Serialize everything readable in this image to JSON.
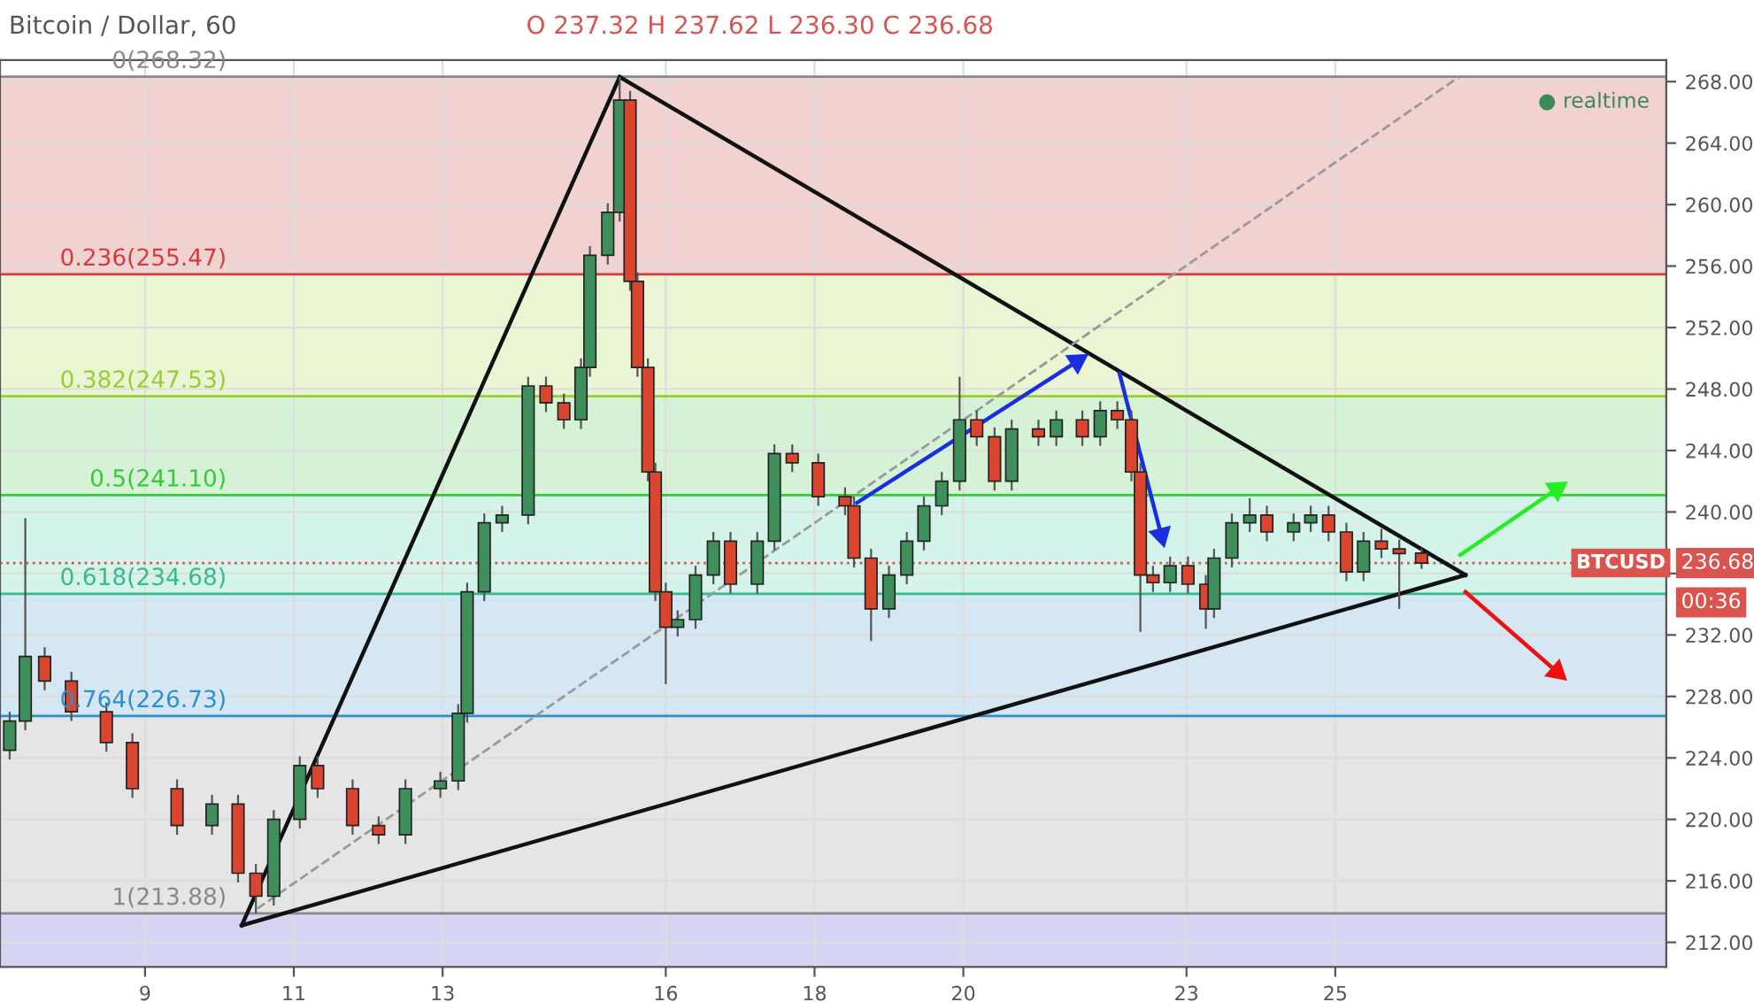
{
  "chart_data": {
    "type": "candlestick",
    "title": "Bitcoin / Dollar, 60",
    "subtitle": "O 237.32 H 237.62 L 236.30 C 236.68",
    "annotations": [
      "● realtime",
      "236.68",
      "00:36"
    ],
    "x": [
      7.18,
      7.39,
      7.65,
      8.01,
      8.48,
      8.83,
      9.43,
      9.9,
      10.25,
      10.49,
      10.73,
      11.08,
      11.32,
      11.79,
      12.14,
      12.5,
      12.97,
      13.21,
      13.33,
      13.56,
      13.8,
      14.15,
      14.39,
      14.63,
      14.86,
      14.98,
      15.22,
      15.38,
      15.52,
      15.62,
      15.76,
      15.86,
      16.0,
      16.16,
      16.4,
      16.64,
      16.87,
      17.23,
      17.46,
      17.7,
      18.05,
      18.41,
      18.53,
      18.76,
      19.0,
      19.24,
      19.47,
      19.71,
      19.95,
      20.18,
      20.42,
      20.65,
      21.01,
      21.25,
      21.6,
      21.84,
      22.07,
      22.26,
      22.38,
      22.55,
      22.78,
      23.02,
      23.26,
      23.37,
      23.61,
      23.85,
      24.08,
      24.44,
      24.67,
      24.91,
      25.15,
      25.38,
      25.62,
      25.86,
      26.16
    ],
    "ohlc": [
      [
        224.5,
        227.0,
        223.9,
        226.4
      ],
      [
        226.4,
        239.6,
        225.8,
        230.6
      ],
      [
        230.6,
        231.2,
        228.4,
        229.0
      ],
      [
        229.0,
        229.6,
        226.4,
        227.0
      ],
      [
        227.0,
        227.6,
        224.4,
        225.0
      ],
      [
        225.0,
        225.6,
        221.4,
        222.0
      ],
      [
        222.0,
        222.6,
        219.0,
        219.6
      ],
      [
        219.6,
        221.6,
        219.0,
        221.0
      ],
      [
        221.0,
        221.6,
        215.9,
        216.5
      ],
      [
        216.5,
        217.1,
        213.88,
        215.0
      ],
      [
        215.0,
        220.6,
        214.4,
        220.0
      ],
      [
        220.0,
        224.1,
        219.4,
        223.5
      ],
      [
        223.5,
        224.1,
        221.4,
        222.0
      ],
      [
        222.0,
        222.6,
        219.0,
        219.6
      ],
      [
        219.6,
        220.2,
        218.4,
        219.0
      ],
      [
        219.0,
        222.6,
        218.4,
        222.0
      ],
      [
        222.0,
        223.1,
        221.4,
        222.5
      ],
      [
        222.5,
        227.5,
        221.9,
        226.9
      ],
      [
        226.9,
        235.4,
        226.3,
        234.8
      ],
      [
        234.8,
        239.9,
        234.2,
        239.3
      ],
      [
        239.3,
        240.4,
        238.7,
        239.8
      ],
      [
        239.8,
        248.8,
        239.2,
        248.2
      ],
      [
        248.2,
        248.8,
        246.5,
        247.1
      ],
      [
        247.1,
        247.7,
        245.4,
        246.0
      ],
      [
        246.0,
        250.0,
        245.4,
        249.4
      ],
      [
        249.4,
        257.3,
        248.8,
        256.7
      ],
      [
        256.7,
        260.1,
        256.1,
        259.5
      ],
      [
        259.5,
        268.32,
        258.9,
        266.8
      ],
      [
        266.8,
        267.4,
        254.4,
        255.0
      ],
      [
        255.0,
        255.6,
        248.8,
        249.4
      ],
      [
        249.4,
        250.0,
        242.0,
        242.6
      ],
      [
        242.6,
        243.2,
        234.2,
        234.8
      ],
      [
        234.8,
        235.4,
        228.8,
        232.5
      ],
      [
        232.5,
        233.6,
        231.9,
        233.0
      ],
      [
        233.0,
        236.5,
        232.4,
        235.9
      ],
      [
        235.9,
        238.7,
        235.3,
        238.1
      ],
      [
        238.1,
        238.7,
        234.7,
        235.3
      ],
      [
        235.3,
        238.7,
        234.7,
        238.1
      ],
      [
        238.1,
        244.4,
        237.5,
        243.8
      ],
      [
        243.8,
        244.4,
        242.6,
        243.2
      ],
      [
        243.2,
        243.8,
        240.4,
        241.0
      ],
      [
        241.0,
        241.6,
        239.8,
        240.4
      ],
      [
        240.4,
        241.0,
        236.4,
        237.0
      ],
      [
        237.0,
        237.6,
        231.6,
        233.7
      ],
      [
        233.7,
        236.5,
        233.1,
        235.9
      ],
      [
        235.9,
        238.7,
        235.3,
        238.1
      ],
      [
        238.1,
        241.0,
        237.5,
        240.4
      ],
      [
        240.4,
        242.6,
        239.8,
        242.0
      ],
      [
        242.0,
        248.8,
        241.4,
        246.0
      ],
      [
        246.0,
        246.6,
        244.3,
        244.9
      ],
      [
        244.9,
        245.5,
        241.4,
        242.0
      ],
      [
        242.0,
        246.0,
        241.4,
        245.4
      ],
      [
        245.4,
        246.0,
        244.3,
        244.9
      ],
      [
        244.9,
        246.6,
        244.3,
        246.0
      ],
      [
        246.0,
        246.6,
        244.3,
        244.9
      ],
      [
        244.9,
        247.2,
        244.3,
        246.6
      ],
      [
        246.6,
        247.2,
        245.4,
        246.0
      ],
      [
        246.0,
        246.6,
        242.0,
        242.6
      ],
      [
        242.6,
        243.2,
        232.2,
        235.9
      ],
      [
        235.9,
        236.5,
        234.8,
        235.4
      ],
      [
        235.4,
        237.1,
        234.8,
        236.5
      ],
      [
        236.5,
        237.1,
        234.7,
        235.3
      ],
      [
        235.3,
        235.9,
        232.4,
        233.7
      ],
      [
        233.7,
        237.6,
        233.1,
        237.0
      ],
      [
        237.0,
        239.9,
        236.4,
        239.3
      ],
      [
        239.3,
        240.9,
        238.7,
        239.8
      ],
      [
        239.8,
        240.4,
        238.1,
        238.7
      ],
      [
        238.7,
        239.9,
        238.1,
        239.3
      ],
      [
        239.3,
        240.4,
        238.7,
        239.8
      ],
      [
        239.8,
        240.4,
        238.1,
        238.7
      ],
      [
        238.7,
        239.3,
        235.5,
        236.1
      ],
      [
        236.1,
        238.7,
        235.5,
        238.1
      ],
      [
        238.1,
        238.9,
        237.0,
        237.6
      ],
      [
        237.6,
        238.2,
        233.7,
        237.3
      ],
      [
        237.32,
        237.62,
        236.3,
        236.68
      ]
    ],
    "colors": [
      "#3f8f5c",
      "#3f8f5c",
      "#d9452f",
      "#d9452f",
      "#d9452f",
      "#d9452f",
      "#d9452f",
      "#3f8f5c",
      "#d9452f",
      "#d9452f",
      "#3f8f5c",
      "#3f8f5c",
      "#d9452f",
      "#d9452f",
      "#d9452f",
      "#3f8f5c",
      "#3f8f5c",
      "#3f8f5c",
      "#3f8f5c",
      "#3f8f5c",
      "#3f8f5c",
      "#3f8f5c",
      "#d9452f",
      "#d9452f",
      "#3f8f5c",
      "#3f8f5c",
      "#3f8f5c",
      "#3f8f5c",
      "#d9452f",
      "#d9452f",
      "#d9452f",
      "#d9452f",
      "#d9452f",
      "#3f8f5c",
      "#3f8f5c",
      "#3f8f5c",
      "#d9452f",
      "#3f8f5c",
      "#3f8f5c",
      "#d9452f",
      "#d9452f",
      "#d9452f",
      "#d9452f",
      "#d9452f",
      "#3f8f5c",
      "#3f8f5c",
      "#3f8f5c",
      "#3f8f5c",
      "#3f8f5c",
      "#d9452f",
      "#d9452f",
      "#3f8f5c",
      "#d9452f",
      "#3f8f5c",
      "#d9452f",
      "#3f8f5c",
      "#d9452f",
      "#d9452f",
      "#d9452f",
      "#d9452f",
      "#3f8f5c",
      "#d9452f",
      "#d9452f",
      "#3f8f5c",
      "#3f8f5c",
      "#3f8f5c",
      "#d9452f",
      "#3f8f5c",
      "#3f8f5c",
      "#d9452f",
      "#d9452f",
      "#3f8f5c",
      "#d9452f",
      "#d9452f",
      "#d9452f"
    ],
    "series": [
      {
        "type": "line",
        "x": [
          10.3,
          15.38
        ],
        "values": [
          213.1,
          268.3
        ],
        "color": "#111111",
        "line_style": "solid"
      },
      {
        "type": "line",
        "x": [
          15.38,
          26.75
        ],
        "values": [
          268.3,
          235.9
        ],
        "color": "#111111",
        "line_style": "solid"
      },
      {
        "type": "line",
        "x": [
          10.3,
          26.75
        ],
        "values": [
          213.1,
          235.9
        ],
        "color": "#111111",
        "line_style": "solid"
      },
      {
        "type": "line",
        "x": [
          10.51,
          26.66
        ],
        "values": [
          214.2,
          268.3
        ],
        "color": "#999999",
        "line_style": "dashed"
      },
      {
        "type": "line",
        "marker": "triangle",
        "x": [
          18.57,
          21.53
        ],
        "values": [
          240.6,
          249.8
        ],
        "color": "#1a2ee0",
        "line_style": "solid"
      },
      {
        "type": "line",
        "marker": "triangle",
        "x": [
          22.1,
          22.66
        ],
        "values": [
          249.0,
          238.5
        ],
        "color": "#1a2ee0",
        "line_style": "solid"
      },
      {
        "type": "line",
        "marker": "triangle",
        "x": [
          26.68,
          27.98
        ],
        "values": [
          237.2,
          241.5
        ],
        "color": "#22ee22",
        "line_style": "solid"
      },
      {
        "type": "line",
        "marker": "triangle",
        "x": [
          26.75,
          27.98
        ],
        "values": [
          234.8,
          229.6
        ],
        "color": "#ee1111",
        "line_style": "solid"
      }
    ],
    "bands": [
      {
        "axis": "y",
        "from": 255.47,
        "to": 268.32,
        "color": "#f2d2d0"
      },
      {
        "axis": "y",
        "from": 247.53,
        "to": 255.47,
        "color": "#eaf5d4"
      },
      {
        "axis": "y",
        "from": 241.1,
        "to": 247.53,
        "color": "#d6f2d6"
      },
      {
        "axis": "y",
        "from": 234.68,
        "to": 241.1,
        "color": "#d4f3ea"
      },
      {
        "axis": "y",
        "from": 226.73,
        "to": 234.68,
        "color": "#d4e7f3"
      },
      {
        "axis": "y",
        "from": 213.88,
        "to": 226.73,
        "color": "#e5e5e5"
      },
      {
        "axis": "y",
        "from": 210.4,
        "to": 213.88,
        "color": "#d5d5f3"
      }
    ],
    "ref_lines": [
      {
        "axis": "y",
        "value": 268.32,
        "label": "0(268.32)",
        "color": "#888888",
        "line_style": "solid"
      },
      {
        "axis": "y",
        "value": 255.47,
        "label": "0.236(255.47)",
        "color": "#d63a3a",
        "line_style": "solid"
      },
      {
        "axis": "y",
        "value": 247.53,
        "label": "0.382(247.53)",
        "color": "#99cc33",
        "line_style": "solid"
      },
      {
        "axis": "y",
        "value": 241.1,
        "label": "0.5(241.10)",
        "color": "#33cc33",
        "line_style": "solid"
      },
      {
        "axis": "y",
        "value": 234.68,
        "label": "0.618(234.68)",
        "color": "#33bb88",
        "line_style": "solid"
      },
      {
        "axis": "y",
        "value": 226.73,
        "label": "0.764(226.73)",
        "color": "#2a8fd0",
        "line_style": "solid"
      },
      {
        "axis": "y",
        "value": 213.88,
        "label": "1(213.88)",
        "color": "#888888",
        "line_style": "solid"
      },
      {
        "axis": "y",
        "value": 236.68,
        "label": "BTCUSD",
        "color": "#d9534f",
        "line_style": "dotted"
      }
    ],
    "xlim": [
      7.05,
      29.45
    ],
    "xticks": [
      9,
      11,
      13,
      16,
      18,
      20,
      23,
      25
    ],
    "ylim": [
      210.4,
      269.4
    ],
    "yticks": [
      {
        "value": 212,
        "label": "212.00"
      },
      {
        "value": 216,
        "label": "216.00"
      },
      {
        "value": 220,
        "label": "220.00"
      },
      {
        "value": 224,
        "label": "224.00"
      },
      {
        "value": 228,
        "label": "228.00"
      },
      {
        "value": 232,
        "label": "232.00"
      },
      {
        "value": 236,
        "label": null
      },
      {
        "value": 240,
        "label": "240.00"
      },
      {
        "value": 244,
        "label": "244.00"
      },
      {
        "value": 248,
        "label": "248.00"
      },
      {
        "value": 252,
        "label": "252.00"
      },
      {
        "value": 256,
        "label": "256.00"
      },
      {
        "value": 260,
        "label": "260.00"
      },
      {
        "value": 264,
        "label": "264.00"
      },
      {
        "value": 268,
        "label": "268.00"
      }
    ],
    "grid": true
  }
}
